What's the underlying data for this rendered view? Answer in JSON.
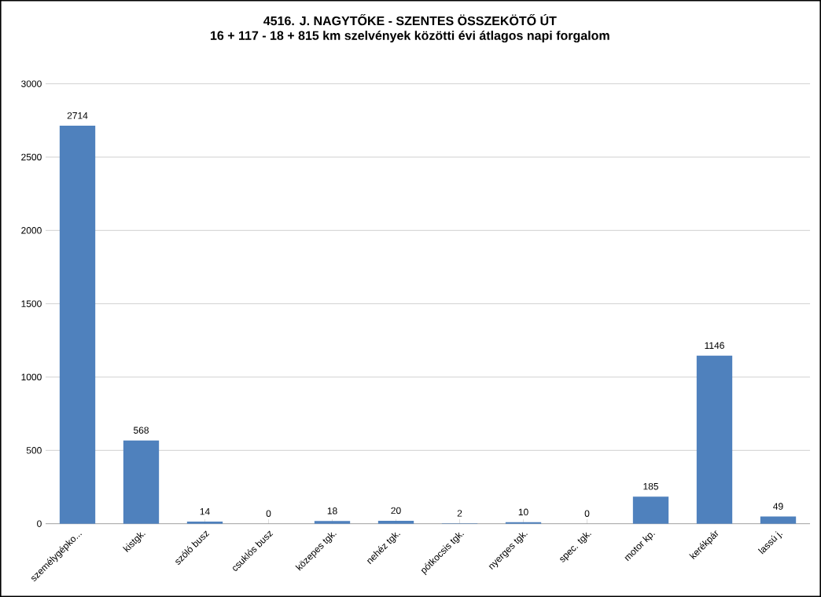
{
  "chart_data": {
    "type": "bar",
    "title": "4516. J. NAGYTŐKE - SZENTES ÖSSZEKÖTŐ ÚT",
    "subtitle": "16 + 117 - 18 + 815 km szelvények közötti évi átlagos napi forgalom",
    "categories": [
      "személygépko...",
      "kistgk.",
      "szóló busz",
      "csuklós busz",
      "közepes tgk.",
      "nehéz tgk.",
      "pótkocsis tgk.",
      "nyerges tgk.",
      "spec. tgk.",
      "motor kp.",
      "kerékpár",
      "lassú j."
    ],
    "values": [
      2714,
      568,
      14,
      0,
      18,
      20,
      2,
      10,
      0,
      185,
      1146,
      49
    ],
    "color": "#4f81bd",
    "ylim": [
      0,
      3000
    ],
    "yticks": [
      0,
      500,
      1000,
      1500,
      2000,
      2500,
      3000
    ],
    "grid": "y",
    "data_labels": true
  }
}
